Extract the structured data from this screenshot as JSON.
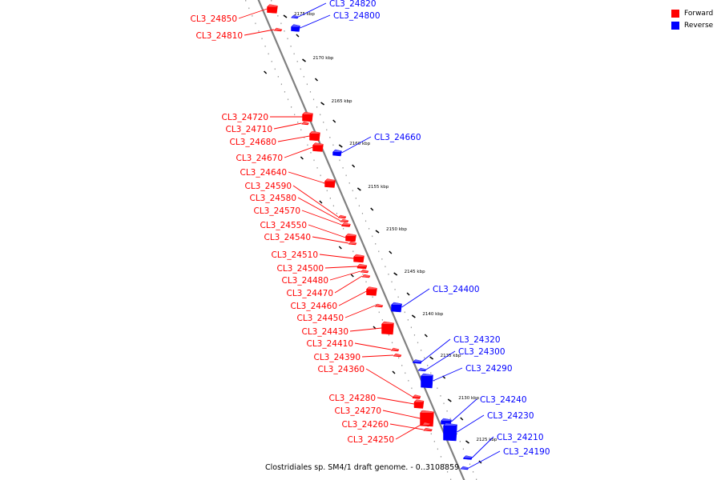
{
  "legend": {
    "forward_label": "Forward",
    "reverse_label": "Reverse",
    "forward_color": "#ff0000",
    "reverse_color": "#0000ff"
  },
  "caption": "Clostridiales sp. SM4/1 draft genome. - 0..3108859",
  "colors": {
    "forward": "#ff0000",
    "reverse": "#0000ff",
    "axis": "#808080"
  },
  "scale_ticks": [
    {
      "kbp": 2175,
      "label": "2175 kbp"
    },
    {
      "kbp": 2170,
      "label": "2170 kbp"
    },
    {
      "kbp": 2165,
      "label": "2165 kbp"
    },
    {
      "kbp": 2160,
      "label": "2160 kbp"
    },
    {
      "kbp": 2155,
      "label": "2155 kbp"
    },
    {
      "kbp": 2150,
      "label": "2150 kbp"
    },
    {
      "kbp": 2145,
      "label": "2145 kbp"
    },
    {
      "kbp": 2140,
      "label": "2140 kbp"
    },
    {
      "kbp": 2135,
      "label": "2135 kbp"
    },
    {
      "kbp": 2130,
      "label": "2130 kbp"
    },
    {
      "kbp": 2125,
      "label": "2125 kbp"
    }
  ],
  "forward_genes": [
    "CL3_24850",
    "CL3_24810",
    "CL3_24720",
    "CL3_24710",
    "CL3_24680",
    "CL3_24670",
    "CL3_24640",
    "CL3_24590",
    "CL3_24580",
    "CL3_24570",
    "CL3_24550",
    "CL3_24540",
    "CL3_24510",
    "CL3_24500",
    "CL3_24480",
    "CL3_24470",
    "CL3_24460",
    "CL3_24450",
    "CL3_24430",
    "CL3_24410",
    "CL3_24390",
    "CL3_24360",
    "CL3_24280",
    "CL3_24270",
    "CL3_24260",
    "CL3_24250"
  ],
  "reverse_genes": [
    "CL3_24820",
    "CL3_24800",
    "CL3_24660",
    "CL3_24400",
    "CL3_24320",
    "CL3_24300",
    "CL3_24290",
    "CL3_24240",
    "CL3_24230",
    "CL3_24210",
    "CL3_24190"
  ]
}
